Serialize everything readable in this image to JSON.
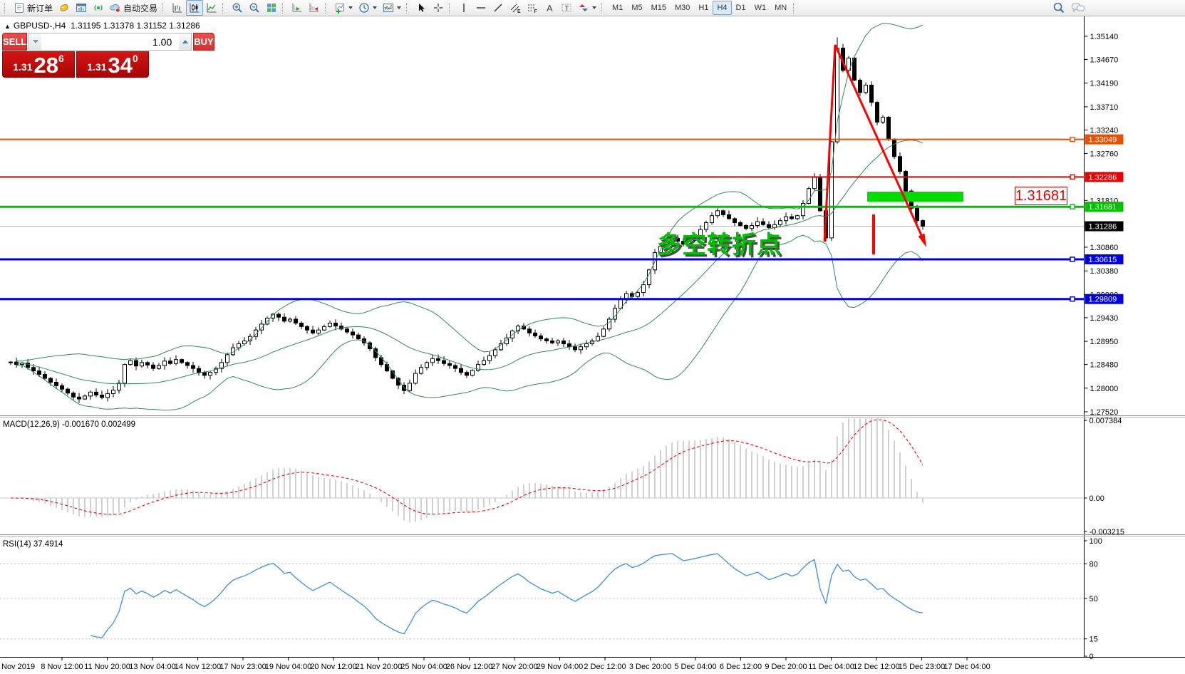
{
  "toolbar": {
    "new_order": "新订单",
    "autotrade": "自动交易",
    "timeframes": [
      "M1",
      "M5",
      "M15",
      "M30",
      "H1",
      "H4",
      "D1",
      "W1",
      "MN"
    ],
    "active_timeframe": "H4"
  },
  "trade_panel": {
    "sell": "SELL",
    "buy": "BUY",
    "volume": "1.00",
    "sell_small": "1.31",
    "sell_big": "28",
    "sell_sup": "6",
    "buy_small": "1.31",
    "buy_big": "34",
    "buy_sup": "0"
  },
  "chart": {
    "collapse_icon": "▲",
    "title": "GBPUSD-,H4",
    "ohlc": "1.31195 1.31378 1.31152 1.31286"
  },
  "annotations": {
    "turning_point": "多空转折点",
    "price_callout": "1.31681"
  },
  "current_price": {
    "label": "1.31286",
    "value": 1.31286
  },
  "hlines": [
    {
      "price": 1.33049,
      "label": "1.33049",
      "color": "#E65100",
      "weight": 2
    },
    {
      "price": 1.32286,
      "label": "1.32286",
      "color": "#EA0000",
      "weight": 2
    },
    {
      "price": 1.31681,
      "label": "1.31681",
      "color": "#00C000",
      "weight": 3
    },
    {
      "price": 1.30615,
      "label": "1.30615",
      "color": "#0000E0",
      "weight": 3
    },
    {
      "price": 1.29809,
      "label": "1.29809",
      "color": "#0000E0",
      "weight": 3
    }
  ],
  "price_axis": {
    "ticks": [
      "1.35140",
      "1.34670",
      "1.34190",
      "1.33710",
      "1.33240",
      "1.32760",
      "1.31810",
      "1.30860",
      "1.30380",
      "1.29900",
      "1.29430",
      "1.28950",
      "1.28480",
      "1.28000",
      "1.27520"
    ]
  },
  "time_axis": {
    "labels": [
      "Nov 2019",
      "8 Nov 12:00",
      "11 Nov 20:00",
      "13 Nov 04:00",
      "14 Nov 12:00",
      "17 Nov 23:00",
      "19 Nov 04:00",
      "20 Nov 12:00",
      "21 Nov 20:00",
      "25 Nov 04:00",
      "26 Nov 12:00",
      "27 Nov 20:00",
      "29 Nov 04:00",
      "2 Dec 12:00",
      "3 Dec 20:00",
      "5 Dec 04:00",
      "6 Dec 12:00",
      "9 Dec 20:00",
      "11 Dec 04:00",
      "12 Dec 12:00",
      "15 Dec 23:00",
      "17 Dec 04:00"
    ]
  },
  "macd": {
    "label": "MACD(12,26,9) -0.001670 0.002499",
    "axis": [
      "0.007384",
      "0.00",
      "-0.003215"
    ],
    "fast": 12,
    "slow": 26,
    "signal": 9
  },
  "rsi": {
    "label": "RSI(14) 37.4914",
    "period": 14,
    "axis": [
      "100",
      "80",
      "50",
      "15",
      "0"
    ],
    "levels": [
      80,
      50,
      15
    ]
  },
  "chart_data": {
    "type": "candlestick",
    "symbol": "GBPUSD-",
    "timeframe": "H4",
    "current_bar": {
      "open": 1.31195,
      "high": 1.31378,
      "low": 1.31152,
      "close": 1.31286
    },
    "y_axis": {
      "top": 1.3514,
      "bottom": 1.2752
    },
    "spike_high": 1.3512,
    "overlays": {
      "bollinger": {
        "period": 20,
        "deviation": 2
      }
    },
    "closes": [
      1.2853,
      1.2848,
      1.2851,
      1.2842,
      1.2835,
      1.2828,
      1.282,
      1.2812,
      1.2805,
      1.2798,
      1.279,
      1.2782,
      1.2778,
      1.2784,
      1.2792,
      1.2786,
      1.2781,
      1.2789,
      1.2796,
      1.281,
      1.2848,
      1.2856,
      1.2845,
      1.2852,
      1.2847,
      1.284,
      1.2846,
      1.2855,
      1.285,
      1.2858,
      1.2852,
      1.2846,
      1.284,
      1.2832,
      1.2826,
      1.2832,
      1.284,
      1.2852,
      1.2868,
      1.2882,
      1.289,
      1.2896,
      1.2905,
      1.2918,
      1.293,
      1.2942,
      1.295,
      1.2944,
      1.2936,
      1.294,
      1.2932,
      1.2925,
      1.2918,
      1.2912,
      1.2918,
      1.2925,
      1.2932,
      1.2926,
      1.292,
      1.2914,
      1.2908,
      1.29,
      1.2892,
      1.288,
      1.2862,
      1.2848,
      1.2835,
      1.282,
      1.2806,
      1.2795,
      1.281,
      1.283,
      1.2842,
      1.2852,
      1.286,
      1.2856,
      1.285,
      1.2846,
      1.284,
      1.2832,
      1.2826,
      1.2836,
      1.2848,
      1.2856,
      1.2866,
      1.2878,
      1.289,
      1.2902,
      1.2916,
      1.2926,
      1.292,
      1.2912,
      1.2906,
      1.29,
      1.2896,
      1.2892,
      1.2896,
      1.289,
      1.2884,
      1.2878,
      1.2884,
      1.289,
      1.2896,
      1.2905,
      1.292,
      1.294,
      1.2962,
      1.298,
      1.2992,
      1.2986,
      1.2994,
      1.301,
      1.304,
      1.3075,
      1.3088,
      1.3096,
      1.3104,
      1.3098,
      1.3092,
      1.31,
      1.311,
      1.3122,
      1.3136,
      1.315,
      1.316,
      1.3152,
      1.3144,
      1.3136,
      1.313,
      1.3124,
      1.313,
      1.3138,
      1.3132,
      1.3126,
      1.3132,
      1.314,
      1.3148,
      1.3144,
      1.315,
      1.3175,
      1.3205,
      1.3228,
      1.316,
      1.3105,
      1.33,
      1.349,
      1.3445,
      1.347,
      1.3425,
      1.34,
      1.3415,
      1.338,
      1.334,
      1.335,
      1.3305,
      1.327,
      1.324,
      1.32,
      1.3165,
      1.314,
      1.31286
    ]
  },
  "drawings": {
    "trend_color": "#FF0000",
    "zone_color": "#00DC00",
    "bollinger_color": "#2E8B57",
    "macd_hist_color": "#BDBDBD",
    "macd_signal_color": "#FF0000",
    "rsi_color": "#3E8EDE"
  }
}
